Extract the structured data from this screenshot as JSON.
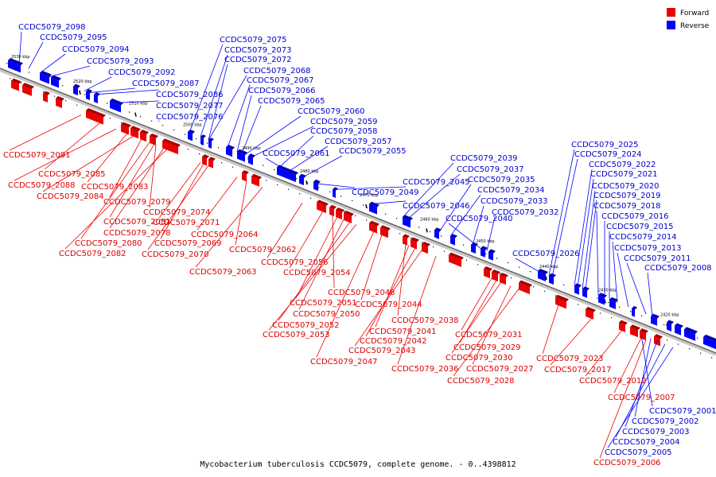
{
  "legend": {
    "forward_label": "Forward",
    "reverse_label": "Reverse",
    "forward_color": "#ee0000",
    "reverse_color": "#0000ff"
  },
  "caption": "Mycobacterium tuberculosis CCDC5079, complete genome. - 0..4398812",
  "ticks": [
    "2530 kbp",
    "2520 kbp",
    "2510 kbp",
    "2500 kbp",
    "2490 kbp",
    "2480 kbp",
    "2470 kbp",
    "2460 kbp",
    "2450 kbp",
    "2440 kbp",
    "2430 kbp",
    "2420 kbp"
  ],
  "reverse_genes": [
    "CCDC5079_2098",
    "CCDC5079_2095",
    "CCDC5079_2094",
    "CCDC5079_2093",
    "CCDC5079_2092",
    "CCDC5079_2087",
    "CCDC5079_2086",
    "CCDC5079_2077",
    "CCDC5079_2076",
    "CCDC5079_2075",
    "CCDC5079_2073",
    "CCDC5079_2072",
    "CCDC5079_2068",
    "CCDC5079_2067",
    "CCDC5079_2066",
    "CCDC5079_2065",
    "CCDC5079_2060",
    "CCDC5079_2059",
    "CCDC5079_2058",
    "CCDC5079_2057",
    "CCDC5079_2061",
    "CCDC5079_2055",
    "CCDC5079_2049",
    "CCDC5079_2045",
    "CCDC5079_2046",
    "CCDC5079_2039",
    "CCDC5079_2037",
    "CCDC5079_2035",
    "CCDC5079_2034",
    "CCDC5079_2033",
    "CCDC5079_2040",
    "CCDC5079_2032",
    "CCDC5079_2026",
    "CCDC5079_2025",
    "CCDC5079_2024",
    "CCDC5079_2022",
    "CCDC5079_2021",
    "CCDC5079_2020",
    "CCDC5079_2019",
    "CCDC5079_2018",
    "CCDC5079_2016",
    "CCDC5079_2015",
    "CCDC5079_2014",
    "CCDC5079_2013",
    "CCDC5079_2011",
    "CCDC5079_2008",
    "CCDC5079_2001",
    "CCDC5079_2002",
    "CCDC5079_2003",
    "CCDC5079_2004",
    "CCDC5079_2005"
  ],
  "forward_genes": [
    "CCDC5079_2091",
    "CCDC5079_2085",
    "CCDC5079_2088",
    "CCDC5079_2083",
    "CCDC5079_2084",
    "CCDC5079_2079",
    "CCDC5079_2074",
    "CCDC5079_2081",
    "CCDC5079_2071",
    "CCDC5079_2078",
    "CCDC5079_2064",
    "CCDC5079_2080",
    "CCDC5079_2069",
    "CCDC5079_2082",
    "CCDC5079_2070",
    "CCDC5079_2062",
    "CCDC5079_2063",
    "CCDC5079_2056",
    "CCDC5079_2054",
    "CCDC5079_2048",
    "CCDC5079_2051",
    "CCDC5079_2044",
    "CCDC5079_2050",
    "CCDC5079_2052",
    "CCDC5079_2053",
    "CCDC5079_2038",
    "CCDC5079_2041",
    "CCDC5079_2042",
    "CCDC5079_2043",
    "CCDC5079_2047",
    "CCDC5079_2031",
    "CCDC5079_2029",
    "CCDC5079_2030",
    "CCDC5079_2036",
    "CCDC5079_2027",
    "CCDC5079_2028",
    "CCDC5079_2023",
    "CCDC5079_2017",
    "CCDC5079_2012",
    "CCDC5079_2007",
    "CCDC5079_2006"
  ]
}
